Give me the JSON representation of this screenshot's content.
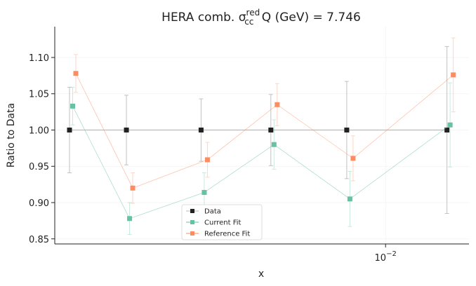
{
  "chart_data": {
    "type": "errorbar-line",
    "title": {
      "text": "HERA comb. σ",
      "sup": "red",
      "sub": "cc",
      "rest": " Q (GeV) = 7.746"
    },
    "xlabel": "x",
    "ylabel": "Ratio to Data",
    "log_x": true,
    "grid": true,
    "legend": "lower center",
    "x": [
      0.000433,
      0.000762,
      0.0016,
      0.0032,
      0.0068,
      0.0184
    ],
    "xlim": [
      0.000374,
      0.0229
    ],
    "xticks": [
      {
        "value": 0.01,
        "label": "10",
        "exponent": "−2"
      }
    ],
    "ylim": [
      0.843,
      1.1425
    ],
    "yticks": [
      {
        "value": 0.85,
        "label": "0.85"
      },
      {
        "value": 0.9,
        "label": "0.90"
      },
      0.95,
      {
        "value": 1.0,
        "label": "1.00"
      },
      1.05,
      {
        "value": 1.1,
        "label": "1.10"
      }
    ],
    "series": [
      {
        "name": "Data",
        "color": "#222222",
        "line_color": "#bbbbbb",
        "values": [
          1.0,
          1.0,
          1.0,
          1.0,
          1.0,
          1.0
        ],
        "errors": [
          0.059,
          0.048,
          0.043,
          0.049,
          0.067,
          0.115
        ]
      },
      {
        "name": "Current Fit",
        "color": "#66c2a5",
        "values": [
          1.033,
          0.878,
          0.914,
          0.98,
          0.905,
          1.007
        ],
        "errors": [
          0.026,
          0.022,
          0.027,
          0.034,
          0.038,
          0.058
        ]
      },
      {
        "name": "Reference Fit",
        "color": "#fc8d62",
        "values": [
          1.078,
          0.92,
          0.959,
          1.035,
          0.961,
          1.076
        ],
        "errors": [
          0.026,
          0.021,
          0.024,
          0.029,
          0.031,
          0.051
        ]
      }
    ]
  }
}
